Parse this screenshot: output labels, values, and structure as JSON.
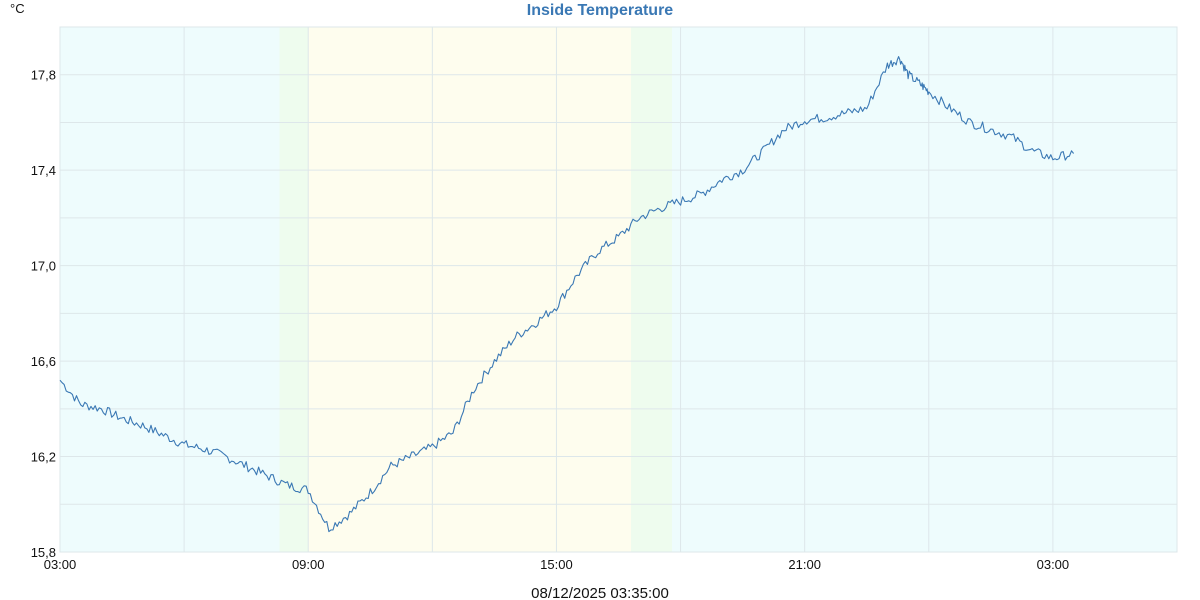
{
  "chart_data": {
    "type": "line",
    "title": "Inside Temperature",
    "ylabel": "°C",
    "footer_timestamp": "08/12/2025 03:35:00",
    "ylim": [
      15.8,
      18.0
    ],
    "y_ticks": [
      {
        "value": 15.8,
        "label": "15,8"
      },
      {
        "value": 16.2,
        "label": "16,2"
      },
      {
        "value": 16.6,
        "label": "16,6"
      },
      {
        "value": 17.0,
        "label": "17,0"
      },
      {
        "value": 17.4,
        "label": "17,4"
      },
      {
        "value": 17.8,
        "label": "17,8"
      }
    ],
    "xlim_hours": [
      3,
      30
    ],
    "x_ticks": [
      {
        "value": 3,
        "label": "03:00"
      },
      {
        "value": 9,
        "label": "09:00"
      },
      {
        "value": 15,
        "label": "15:00"
      },
      {
        "value": 21,
        "label": "21:00"
      },
      {
        "value": 27,
        "label": "03:00"
      }
    ],
    "grid": true,
    "colors": {
      "line": "#3a78b4",
      "night": "#eefcfd",
      "dawn": "#eefcee",
      "day": "#fefdee",
      "grid": "#dde7ea",
      "title": "#3a78b4"
    },
    "background_bands": [
      {
        "from": 3,
        "to": 8.3,
        "kind": "night"
      },
      {
        "from": 8.3,
        "to": 9.0,
        "kind": "dawn"
      },
      {
        "from": 9.0,
        "to": 16.8,
        "kind": "day"
      },
      {
        "from": 16.8,
        "to": 17.8,
        "kind": "dawn"
      },
      {
        "from": 17.8,
        "to": 30,
        "kind": "night"
      }
    ],
    "series": [
      {
        "x": [
          3.0,
          3.5,
          4.0,
          4.5,
          5.0,
          5.5,
          6.0,
          6.5,
          7.0,
          7.5,
          8.0,
          8.5,
          9.0,
          9.5,
          10.0,
          10.5,
          11.0,
          11.5,
          12.0,
          12.5,
          13.0,
          13.5,
          14.0,
          14.5,
          15.0,
          15.5,
          16.0,
          16.5,
          17.0,
          17.5,
          18.0,
          18.5,
          19.0,
          19.5,
          20.0,
          20.5,
          21.0,
          21.5,
          22.0,
          22.5,
          23.0,
          23.3,
          23.5,
          23.8,
          24.0,
          24.5,
          25.0,
          25.5,
          26.0,
          26.5,
          27.0,
          27.5
        ],
        "values": [
          16.52,
          16.42,
          16.4,
          16.36,
          16.33,
          16.29,
          16.25,
          16.23,
          16.2,
          16.16,
          16.12,
          16.08,
          16.06,
          15.9,
          15.96,
          16.05,
          16.16,
          16.2,
          16.24,
          16.3,
          16.48,
          16.6,
          16.7,
          16.76,
          16.83,
          16.96,
          17.06,
          17.12,
          17.2,
          17.24,
          17.27,
          17.3,
          17.36,
          17.4,
          17.48,
          17.57,
          17.61,
          17.62,
          17.64,
          17.66,
          17.84,
          17.87,
          17.8,
          17.76,
          17.73,
          17.66,
          17.6,
          17.57,
          17.54,
          17.48,
          17.45,
          17.47
        ]
      }
    ]
  }
}
